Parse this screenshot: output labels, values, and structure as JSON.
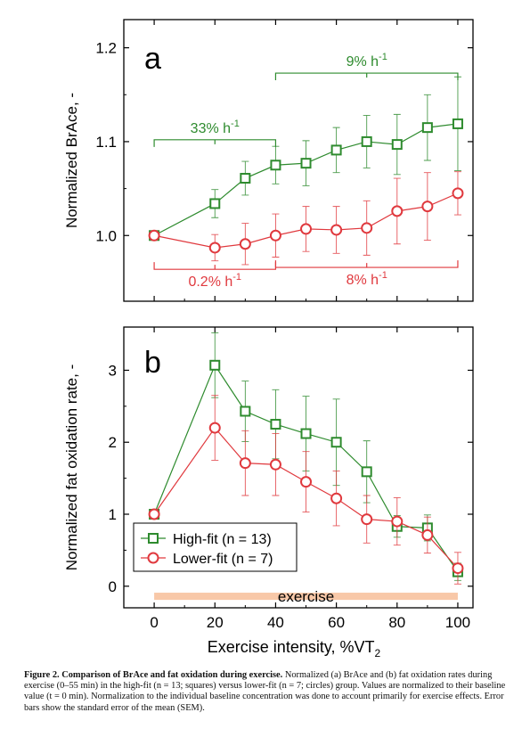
{
  "colors": {
    "high": "#2e8b2e",
    "low": "#e0393e",
    "exercise": "#f8c8a8",
    "axis": "#000000"
  },
  "chart_data": [
    {
      "panel": "a",
      "type": "line",
      "ylabel": "Normalized BrAce, -",
      "ylim": [
        0.93,
        1.23
      ],
      "yticks": [
        "1.0",
        "1.1",
        "1.2"
      ],
      "yticks_val": [
        1.0,
        1.1,
        1.2
      ],
      "x": [
        0,
        20,
        30,
        40,
        50,
        60,
        70,
        80,
        90,
        100
      ],
      "series": [
        {
          "key": "high",
          "marker": "square",
          "values": [
            1.0,
            1.034,
            1.061,
            1.075,
            1.077,
            1.091,
            1.1,
            1.097,
            1.115,
            1.119
          ],
          "err": [
            0,
            0.015,
            0.018,
            0.02,
            0.024,
            0.024,
            0.028,
            0.032,
            0.035,
            0.05
          ]
        },
        {
          "key": "low",
          "marker": "circle",
          "values": [
            1.0,
            0.987,
            0.991,
            1.0,
            1.007,
            1.006,
            1.008,
            1.026,
            1.031,
            1.045
          ],
          "err": [
            0,
            0.014,
            0.022,
            0.023,
            0.024,
            0.025,
            0.029,
            0.035,
            0.036,
            0.023
          ]
        }
      ],
      "annotations": [
        {
          "key": "high",
          "text": "33% h",
          "sup": "-1",
          "x0": 0,
          "x1": 40,
          "y": 1.102,
          "side": "above"
        },
        {
          "key": "high",
          "text": "9% h",
          "sup": "-1",
          "x0": 40,
          "x1": 100,
          "y": 1.173,
          "side": "above"
        },
        {
          "key": "low",
          "text": "0.2% h",
          "sup": "-1",
          "x0": 0,
          "x1": 40,
          "y": 0.964,
          "side": "below"
        },
        {
          "key": "low",
          "text": "8% h",
          "sup": "-1",
          "x0": 40,
          "x1": 100,
          "y": 0.966,
          "side": "below"
        }
      ]
    },
    {
      "panel": "b",
      "type": "line",
      "ylabel": "Normalized fat oxidation rate, -",
      "ylim": [
        -0.3,
        3.6
      ],
      "yticks": [
        "0",
        "1",
        "2",
        "3"
      ],
      "yticks_val": [
        0,
        1,
        2,
        3
      ],
      "x": [
        0,
        20,
        30,
        40,
        50,
        60,
        70,
        80,
        90,
        100
      ],
      "xlabel": "Exercise intensity, %VT",
      "xlabel_sub": "2",
      "xticks": [
        "0",
        "20",
        "40",
        "60",
        "80",
        "100"
      ],
      "xticks_val": [
        0,
        20,
        40,
        60,
        80,
        100
      ],
      "series": [
        {
          "key": "high",
          "name": "High-fit (n = 13)",
          "marker": "square",
          "values": [
            1.0,
            3.07,
            2.43,
            2.25,
            2.12,
            2.0,
            1.59,
            0.83,
            0.81,
            0.2
          ],
          "err": [
            0,
            0.45,
            0.42,
            0.48,
            0.52,
            0.6,
            0.43,
            0.15,
            0.18,
            0.12
          ]
        },
        {
          "key": "low",
          "name": "Lower-fit (n = 7)",
          "marker": "circle",
          "values": [
            1.0,
            2.2,
            1.71,
            1.69,
            1.45,
            1.22,
            0.93,
            0.9,
            0.71,
            0.25
          ],
          "err": [
            0,
            0.45,
            0.45,
            0.43,
            0.42,
            0.38,
            0.33,
            0.33,
            0.25,
            0.22
          ]
        }
      ],
      "shaded_region": {
        "label": "exercise",
        "x0": 0,
        "x1": 100,
        "y0": -0.19,
        "y1": -0.09
      },
      "legend": "lower-left"
    }
  ],
  "caption": {
    "title": "Figure 2. Comparison of BrAce and fat oxidation during exercise.",
    "text": " Normalized (a) BrAce and (b) fat oxidation rates during exercise (0–55 min) in the high-fit (n = 13; squares) versus lower-fit (n = 7; circles) group. Values are normalized to their baseline value (t = 0 min). Normalization to the individual baseline concentration was done to account primarily for exercise effects. Error bars show the standard error of the mean (SEM)."
  }
}
